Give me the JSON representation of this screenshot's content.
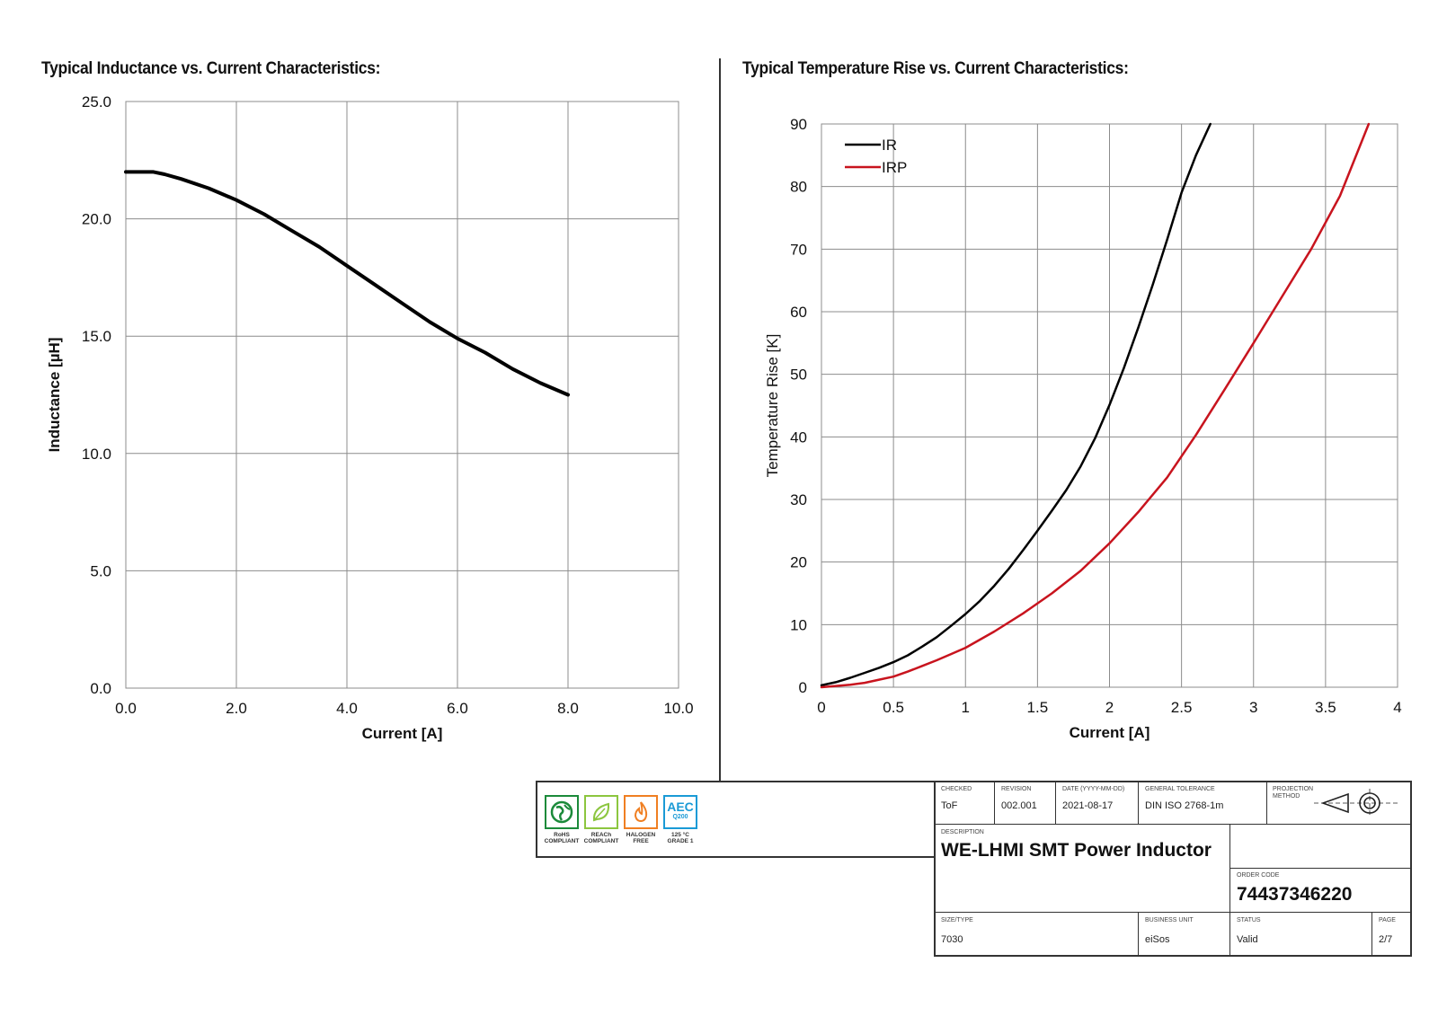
{
  "left_chart_title": "Typical Inductance vs. Current Characteristics:",
  "right_chart_title": "Typical Temperature Rise vs. Current Characteristics:",
  "chart_data": [
    {
      "type": "line",
      "title": "Typical Inductance vs. Current Characteristics:",
      "xlabel": "Current [A]",
      "ylabel": "Inductance [µH]",
      "xlim": [
        0,
        10
      ],
      "ylim": [
        0,
        25
      ],
      "x_ticks": [
        "0.0",
        "2.0",
        "4.0",
        "6.0",
        "8.0",
        "10.0"
      ],
      "y_ticks": [
        "0.0",
        "5.0",
        "10.0",
        "15.0",
        "20.0",
        "25.0"
      ],
      "grid": true,
      "series": [
        {
          "color": "#000000",
          "x": [
            0,
            0.3,
            0.5,
            0.7,
            1.0,
            1.5,
            2.0,
            2.5,
            3.0,
            3.5,
            4.0,
            4.5,
            5.0,
            5.5,
            6.0,
            6.5,
            7.0,
            7.5,
            8.0
          ],
          "y": [
            22.0,
            22.0,
            22.0,
            21.9,
            21.7,
            21.3,
            20.8,
            20.2,
            19.5,
            18.8,
            18.0,
            17.2,
            16.4,
            15.6,
            14.9,
            14.3,
            13.6,
            13.0,
            12.5
          ]
        }
      ]
    },
    {
      "type": "line",
      "title": "Typical Temperature Rise vs. Current Characteristics:",
      "xlabel": "Current [A]",
      "ylabel": "Temperature Rise [K]",
      "xlim": [
        0,
        4
      ],
      "ylim": [
        0,
        90
      ],
      "x_ticks": [
        "0",
        "0.5",
        "1",
        "1.5",
        "2",
        "2.5",
        "3",
        "3.5",
        "4"
      ],
      "y_ticks": [
        "0",
        "10",
        "20",
        "30",
        "40",
        "50",
        "60",
        "70",
        "80",
        "90"
      ],
      "grid": true,
      "legend_position": "top-left",
      "series": [
        {
          "name": "IR",
          "color": "#000000",
          "x": [
            0,
            0.1,
            0.2,
            0.3,
            0.4,
            0.5,
            0.6,
            0.7,
            0.8,
            0.9,
            1.0,
            1.1,
            1.2,
            1.3,
            1.4,
            1.5,
            1.6,
            1.7,
            1.8,
            1.9,
            2.0,
            2.1,
            2.2,
            2.3,
            2.4,
            2.5,
            2.6,
            2.7
          ],
          "y": [
            0.3,
            0.8,
            1.5,
            2.3,
            3.1,
            4.0,
            5.1,
            6.5,
            8.0,
            9.8,
            11.7,
            13.8,
            16.2,
            18.9,
            21.9,
            25.0,
            28.2,
            31.5,
            35.3,
            39.8,
            45.1,
            51.0,
            57.5,
            64.3,
            71.5,
            79.0,
            85.0,
            90.0
          ]
        },
        {
          "name": "IRP",
          "color": "#c8141e",
          "x": [
            0,
            0.1,
            0.2,
            0.3,
            0.4,
            0.5,
            0.6,
            0.7,
            0.8,
            0.9,
            1.0,
            1.2,
            1.4,
            1.6,
            1.8,
            2.0,
            2.2,
            2.4,
            2.6,
            2.8,
            3.0,
            3.2,
            3.4,
            3.6,
            3.8
          ],
          "y": [
            0.0,
            0.2,
            0.4,
            0.7,
            1.2,
            1.7,
            2.5,
            3.4,
            4.3,
            5.3,
            6.3,
            8.9,
            11.8,
            15.0,
            18.6,
            23.0,
            28.0,
            33.5,
            40.3,
            47.6,
            55.0,
            62.5,
            70.0,
            78.5,
            90.0
          ]
        }
      ]
    }
  ],
  "title_block": {
    "badges": [
      {
        "name": "RoHS",
        "line1": "RoHS",
        "line2": "COMPLIANT",
        "color": "#1b8a3a"
      },
      {
        "name": "REACh",
        "line1": "REACh",
        "line2": "COMPLIANT",
        "color": "#8cc63f"
      },
      {
        "name": "HALOGEN",
        "line1": "HALOGEN",
        "line2": "FREE",
        "color": "#f07f22"
      },
      {
        "name": "AEC",
        "line1": "125 °C",
        "line2": "GRADE 1",
        "color": "#1a9ad6",
        "text_top": "AEC",
        "text_sub": "Q200"
      }
    ],
    "checked_label": "CHECKED",
    "checked_value": "ToF",
    "revision_label": "REVISION",
    "revision_value": "002.001",
    "date_label": "DATE (YYYY-MM-DD)",
    "date_value": "2021-08-17",
    "tolerance_label": "GENERAL TOLERANCE",
    "tolerance_value": "DIN ISO 2768-1m",
    "projection_label": "PROJECTION METHOD",
    "description_label": "DESCRIPTION",
    "description_value": "WE-LHMI SMT Power Inductor",
    "order_code_label": "ORDER CODE",
    "order_code_value": "74437346220",
    "size_label": "SIZE/TYPE",
    "size_value": "7030",
    "business_unit_label": "BUSINESS UNIT",
    "business_unit_value": "eiSos",
    "status_label": "STATUS",
    "status_value": "Valid",
    "page_label": "PAGE",
    "page_value": "2/7"
  }
}
